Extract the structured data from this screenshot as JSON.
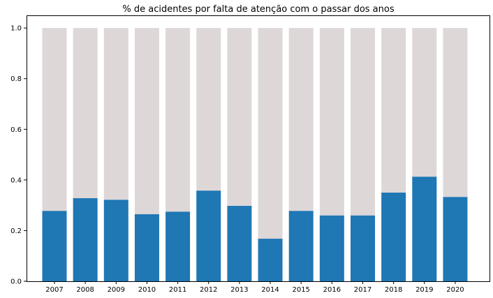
{
  "chart_data": {
    "type": "bar",
    "stacked": true,
    "title": "% de acidentes por falta de atenção com o passar dos anos",
    "xlabel": "",
    "ylabel": "",
    "categories": [
      "2007",
      "2008",
      "2009",
      "2010",
      "2011",
      "2012",
      "2013",
      "2014",
      "2015",
      "2016",
      "2017",
      "2018",
      "2019",
      "2020"
    ],
    "series": [
      {
        "color": "#1f77b4",
        "values": [
          0.278,
          0.328,
          0.322,
          0.265,
          0.275,
          0.358,
          0.298,
          0.168,
          0.278,
          0.26,
          0.26,
          0.35,
          0.413,
          0.333
        ]
      },
      {
        "color": "#ddd7d8",
        "values": [
          0.722,
          0.672,
          0.678,
          0.735,
          0.725,
          0.642,
          0.702,
          0.832,
          0.722,
          0.74,
          0.74,
          0.65,
          0.587,
          0.667
        ]
      }
    ],
    "ylim": [
      0,
      1.05
    ],
    "yticks": [
      0.0,
      0.2,
      0.4,
      0.6,
      0.8,
      1.0
    ],
    "ytick_labels": [
      "0.0",
      "0.2",
      "0.4",
      "0.6",
      "0.8",
      "1.0"
    ],
    "grid": false,
    "legend": "none"
  }
}
